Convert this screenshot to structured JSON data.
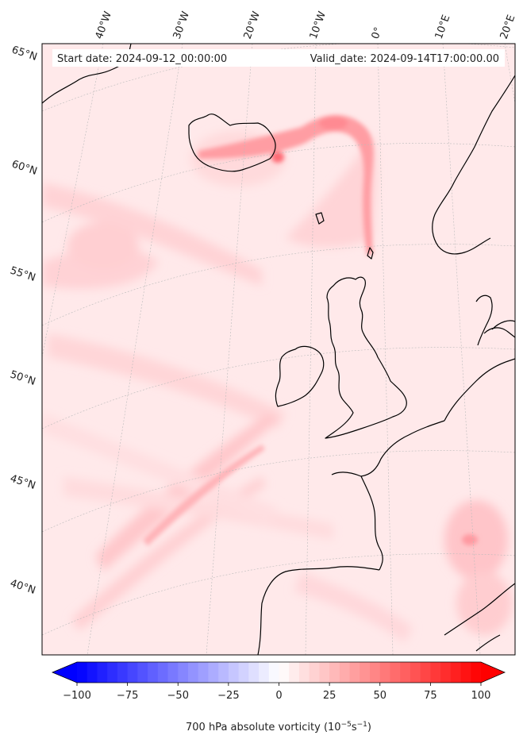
{
  "header": {
    "start_date": "Start date: 2024-09-12_00:00:00",
    "valid_date": "Valid_date: 2024-09-14T17:00:00.00"
  },
  "map": {
    "lon_labels": [
      "40°W",
      "30°W",
      "20°W",
      "10°W",
      "0°",
      "10°E",
      "20°E"
    ],
    "lat_labels": [
      "65°N",
      "60°N",
      "55°N",
      "50°N",
      "45°N",
      "40°N"
    ],
    "coastline_color": "#000000",
    "gridline_color": "#bbbbbb",
    "background_color": "#ffe9ea"
  },
  "colorbar": {
    "title_main": "700 hPa absolute vorticity (10",
    "title_exp1": "−5",
    "title_mid": "s",
    "title_exp2": "−1",
    "title_end": ")",
    "ticks": [
      "−100",
      "−75",
      "−50",
      "−25",
      "0",
      "25",
      "50",
      "75",
      "100"
    ],
    "min": -100,
    "max": 100,
    "low_color": "#0000ff",
    "mid_color": "#ffffff",
    "high_color": "#ff0000"
  }
}
